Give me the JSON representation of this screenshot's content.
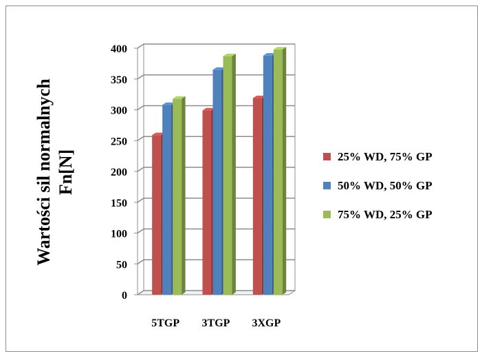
{
  "chart_data": {
    "type": "bar",
    "three_d": true,
    "categories": [
      "5TGP",
      "3TGP",
      "3XGP"
    ],
    "series": [
      {
        "name": "25% WD, 75% GP",
        "color": "#c0504d",
        "values": [
          259,
          299,
          319
        ]
      },
      {
        "name": "50% WD, 50% GP",
        "color": "#4f81bd",
        "values": [
          308,
          365,
          388
        ]
      },
      {
        "name": "75% WD, 25% GP",
        "color": "#9bbb59",
        "values": [
          318,
          387,
          398
        ]
      }
    ],
    "ylabel_lines": [
      "Wartości sil normalnych",
      "Fn[N]"
    ],
    "xlabel": "",
    "ylim": [
      0,
      400
    ],
    "yticks": [
      0,
      50,
      100,
      150,
      200,
      250,
      300,
      350,
      400
    ],
    "grid": true,
    "legend_position": "right"
  }
}
